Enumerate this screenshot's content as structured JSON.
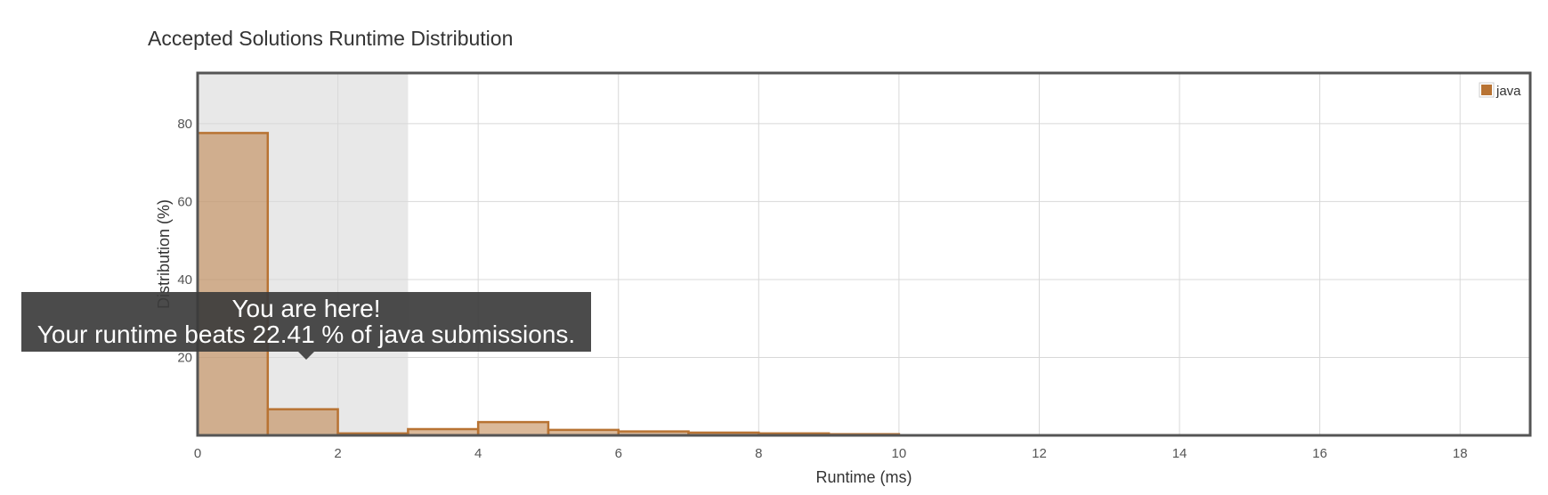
{
  "chart_data": {
    "type": "bar",
    "title": "Accepted Solutions Runtime Distribution",
    "xlabel": "Runtime (ms)",
    "ylabel": "Distribution (%)",
    "xlim": [
      0,
      19
    ],
    "ylim": [
      0,
      93
    ],
    "x_ticks": [
      "0",
      "2",
      "4",
      "6",
      "8",
      "10",
      "12",
      "14",
      "16",
      "18"
    ],
    "y_ticks": [
      "20",
      "40",
      "60",
      "80"
    ],
    "grid": true,
    "legend_position": "top-right",
    "highlight_range": [
      0,
      3
    ],
    "series": [
      {
        "name": "java",
        "color": "#b87333",
        "bins": [
          {
            "start": 0,
            "end": 1,
            "value": 77.6
          },
          {
            "start": 1,
            "end": 2,
            "value": 6.7
          },
          {
            "start": 2,
            "end": 3,
            "value": 0.5
          },
          {
            "start": 3,
            "end": 4,
            "value": 1.6
          },
          {
            "start": 4,
            "end": 5,
            "value": 3.4
          },
          {
            "start": 5,
            "end": 6,
            "value": 1.4
          },
          {
            "start": 6,
            "end": 7,
            "value": 1.0
          },
          {
            "start": 7,
            "end": 8,
            "value": 0.7
          },
          {
            "start": 8,
            "end": 9,
            "value": 0.5
          },
          {
            "start": 9,
            "end": 10,
            "value": 0.3
          }
        ]
      }
    ]
  },
  "tooltip": {
    "line1": "You are here!",
    "line2": "Your runtime beats 22.41 % of java submissions."
  }
}
